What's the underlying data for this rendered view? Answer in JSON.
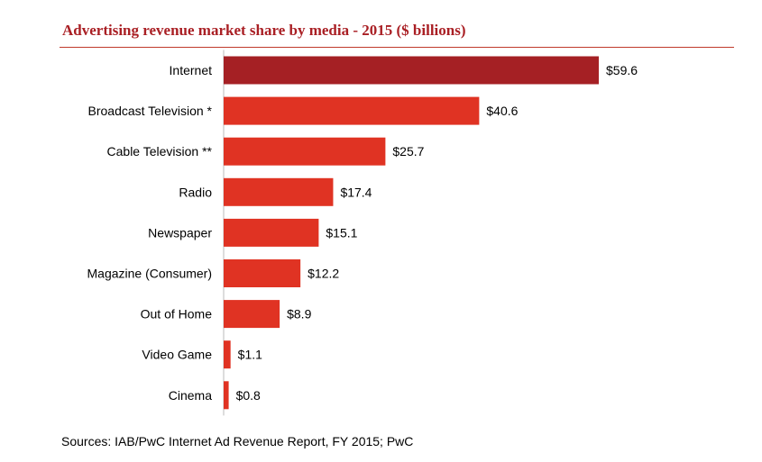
{
  "chart_data": {
    "type": "bar",
    "orientation": "horizontal",
    "title": "Advertising revenue market share by media - 2015 ($ billions)",
    "categories": [
      "Internet",
      "Broadcast Television *",
      "Cable Television **",
      "Radio",
      "Newspaper",
      "Magazine (Consumer)",
      "Out of Home",
      "Video Game",
      "Cinema"
    ],
    "values": [
      59.6,
      40.6,
      25.7,
      17.4,
      15.1,
      12.2,
      8.9,
      1.1,
      0.8
    ],
    "value_labels": [
      "$59.6",
      "$40.6",
      "$25.7",
      "$17.4",
      "$15.1",
      "$12.2",
      "$8.9",
      "$1.1",
      "$0.8"
    ],
    "xlim": [
      0,
      59.6
    ],
    "grid": false,
    "legend": "none",
    "colors": {
      "highlight_bar": "#A52024",
      "bar": "#E03323",
      "title": "#A91F24",
      "rule": "#C0392B"
    }
  },
  "footer": {
    "source": "Sources: IAB/PwC Internet Ad Revenue Report, FY 2015; PwC"
  }
}
